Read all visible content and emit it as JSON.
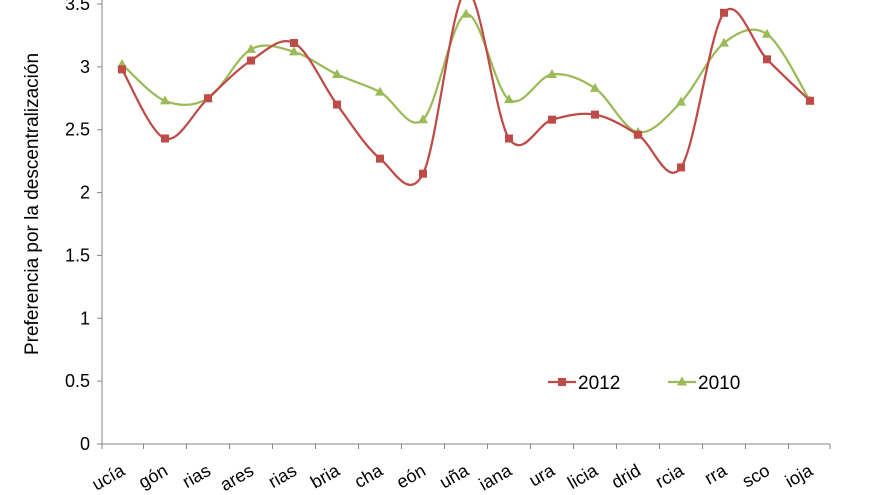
{
  "chart_data": {
    "type": "line",
    "ylabel": "Preferencia por la descentralización",
    "ylim": [
      0,
      3.5
    ],
    "yticks": [
      "0",
      "0.5",
      "1",
      "1.5",
      "2",
      "2.5",
      "3",
      "3.5"
    ],
    "categories": [
      "ucía",
      "gón",
      "rias",
      "ares",
      "rias",
      "bria",
      "cha",
      "eón",
      "uña",
      "iana",
      "ura",
      "licia",
      "drid",
      "rcia",
      "rra",
      "sco",
      "ioja"
    ],
    "series": [
      {
        "name": "2012",
        "color": "#be4b48",
        "marker": "square",
        "values": [
          2.98,
          2.43,
          2.75,
          3.05,
          3.19,
          2.7,
          2.27,
          2.15,
          3.6,
          2.43,
          2.58,
          2.62,
          2.46,
          2.2,
          3.43,
          3.06,
          2.73
        ]
      },
      {
        "name": "2010",
        "color": "#9bbb59",
        "marker": "triangle",
        "values": [
          3.02,
          2.73,
          2.75,
          3.14,
          3.12,
          2.94,
          2.8,
          2.58,
          3.42,
          2.74,
          2.94,
          2.83,
          2.48,
          2.72,
          3.19,
          3.26,
          2.73
        ]
      }
    ],
    "legend_position": "bottom-right inside plot",
    "grid": false
  }
}
